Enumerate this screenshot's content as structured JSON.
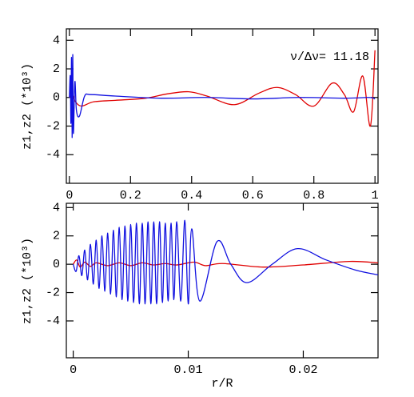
{
  "chart_data": [
    {
      "type": "line",
      "y_label": "z1,z2 (*10³)",
      "annotation": "ν/Δν= 11.18",
      "xlim": [
        -0.01,
        1.01
      ],
      "xticks": [
        0,
        0.2,
        0.4,
        0.6,
        0.8,
        1
      ],
      "ylim": [
        -6,
        4.8
      ],
      "yticks": [
        -4,
        -2,
        0,
        2,
        4
      ],
      "series": [
        {
          "color": "#e00000",
          "x": [
            0,
            0.01,
            0.02,
            0.04,
            0.08,
            0.15,
            0.25,
            0.32,
            0.39,
            0.45,
            0.54,
            0.62,
            0.68,
            0.74,
            0.8,
            0.86,
            0.9,
            0.93,
            0.96,
            0.985,
            1.0
          ],
          "values": [
            0,
            0.2,
            -0.3,
            -0.6,
            -0.3,
            -0.2,
            -0.05,
            0.25,
            0.4,
            0.1,
            -0.5,
            0.3,
            0.7,
            0.2,
            -0.6,
            1.0,
            0.2,
            -1.0,
            1.5,
            -2.0,
            3.3
          ]
        },
        {
          "color": "#1010e0",
          "x": [
            0,
            0.003,
            0.005,
            0.007,
            0.009,
            0.011,
            0.013,
            0.018,
            0.023,
            0.033,
            0.05,
            0.07,
            0.15,
            0.3,
            0.45,
            0.6,
            0.75,
            0.9,
            0.98,
            1.0
          ],
          "values": [
            0,
            1.5,
            -1.8,
            2.8,
            -2.8,
            3.0,
            -2.5,
            1.1,
            -0.9,
            -1.3,
            0.1,
            0.2,
            0.1,
            -0.05,
            0,
            -0.1,
            0,
            -0.05,
            0,
            -0.1
          ]
        }
      ]
    },
    {
      "type": "line",
      "x_label": "r/R",
      "y_label": "z1,z2 (*10³)",
      "xlim": [
        -0.0006,
        0.0265
      ],
      "xticks": [
        0,
        0.01,
        0.02
      ],
      "ylim": [
        -6.6,
        4.3
      ],
      "yticks": [
        -4,
        -2,
        0,
        2,
        4
      ],
      "series": [
        {
          "color": "#e00000",
          "x": [
            0,
            0.0003,
            0.0006,
            0.001,
            0.0015,
            0.002,
            0.003,
            0.004,
            0.005,
            0.006,
            0.007,
            0.008,
            0.009,
            0.0105,
            0.0115,
            0.013,
            0.0165,
            0.02,
            0.024,
            0.0265
          ],
          "values": [
            0,
            0.3,
            -0.2,
            0.15,
            -0.15,
            0.1,
            -0.1,
            0.1,
            -0.1,
            0.1,
            -0.05,
            0.05,
            -0.05,
            0.15,
            -0.1,
            0.05,
            -0.2,
            -0.05,
            0.2,
            0.1
          ]
        },
        {
          "color": "#1010e0",
          "x": [
            0,
            0.00025,
            0.0005,
            0.00075,
            0.001,
            0.00125,
            0.0015,
            0.00175,
            0.002,
            0.00225,
            0.0025,
            0.00275,
            0.003,
            0.00325,
            0.0035,
            0.00375,
            0.004,
            0.00425,
            0.0045,
            0.00475,
            0.005,
            0.00525,
            0.0055,
            0.00575,
            0.006,
            0.00625,
            0.0065,
            0.00675,
            0.007,
            0.00725,
            0.0075,
            0.00775,
            0.008,
            0.00825,
            0.0085,
            0.00875,
            0.009,
            0.00935,
            0.0097,
            0.01,
            0.0103,
            0.011,
            0.0125,
            0.0137,
            0.0151,
            0.0173,
            0.0195,
            0.022,
            0.0245,
            0.0265
          ],
          "values": [
            0,
            -0.5,
            0.6,
            -0.8,
            1.0,
            -1.1,
            1.4,
            -1.4,
            1.7,
            -1.7,
            2.0,
            -1.9,
            2.2,
            -2.1,
            2.4,
            -2.3,
            2.6,
            -2.5,
            2.7,
            -2.6,
            2.8,
            -2.7,
            2.9,
            -2.8,
            2.9,
            -2.8,
            3.0,
            -2.8,
            3.0,
            -2.8,
            3.0,
            -2.7,
            2.9,
            -2.6,
            2.9,
            -2.5,
            3.0,
            -2.6,
            3.1,
            -2.8,
            2.5,
            -2.6,
            1.6,
            0,
            -1.3,
            0,
            1.1,
            0.3,
            -0.4,
            -0.75
          ]
        }
      ]
    }
  ]
}
